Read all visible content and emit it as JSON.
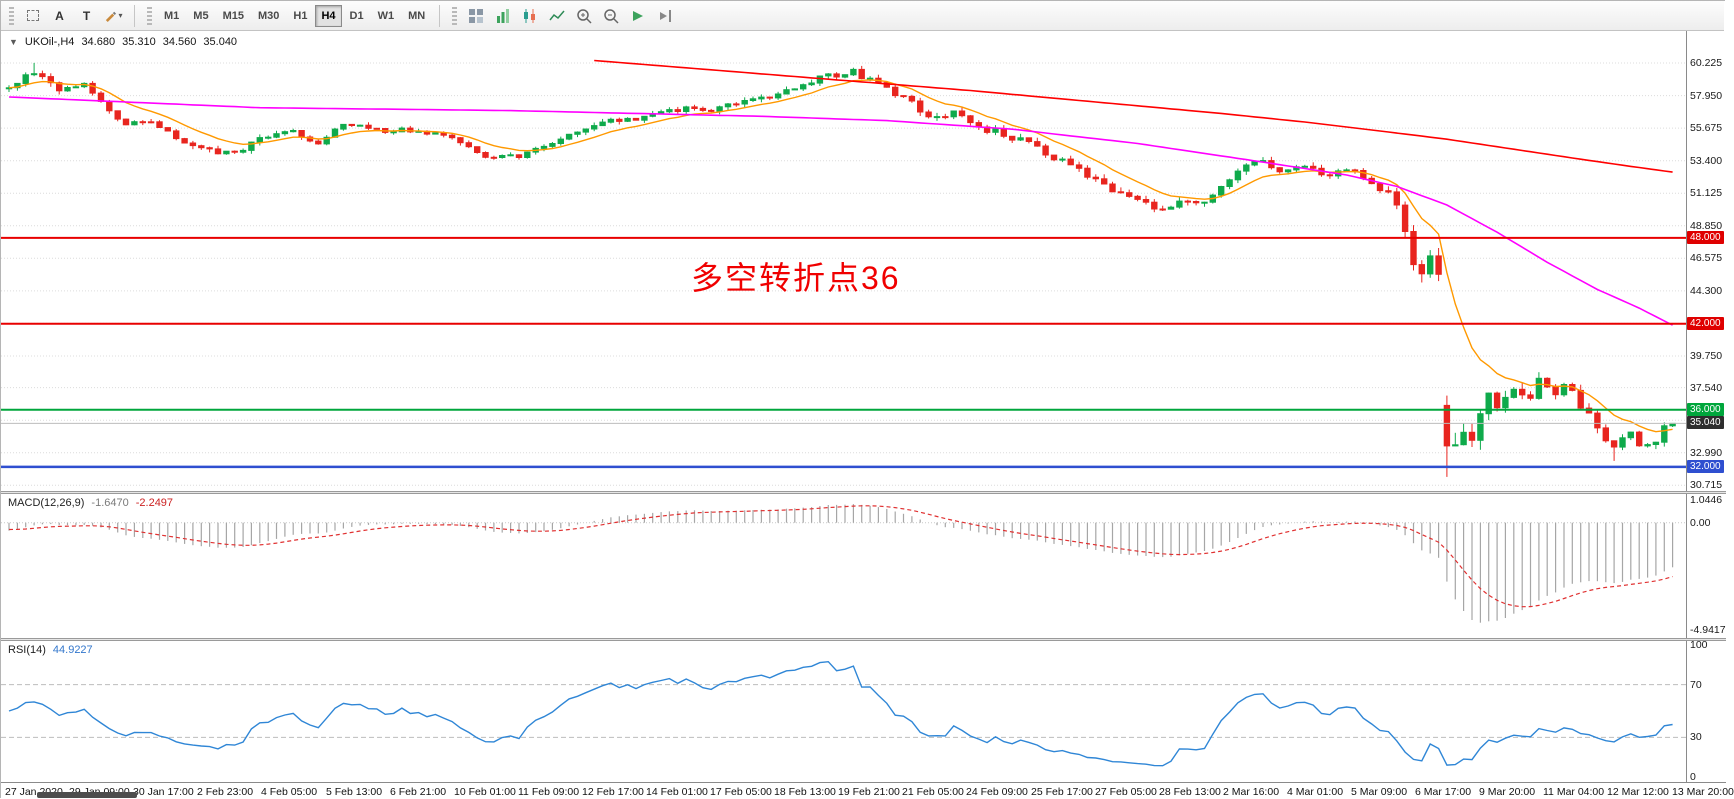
{
  "toolbar": {
    "left_tools": [
      {
        "name": "selection-tool-button",
        "kind": "dashedbox"
      },
      {
        "name": "text-tool-button",
        "kind": "glyph",
        "glyph": "A"
      },
      {
        "name": "label-tool-button",
        "kind": "glyph",
        "glyph": "T"
      },
      {
        "name": "draw-tools-menu-button",
        "kind": "pencil",
        "dropdown": "▾"
      }
    ],
    "timeframes": [
      {
        "label": "M1",
        "active": false
      },
      {
        "label": "M5",
        "active": false
      },
      {
        "label": "M15",
        "active": false
      },
      {
        "label": "M30",
        "active": false
      },
      {
        "label": "H1",
        "active": false
      },
      {
        "label": "H4",
        "active": true
      },
      {
        "label": "D1",
        "active": false
      },
      {
        "label": "W1",
        "active": false
      },
      {
        "label": "MN",
        "active": false
      }
    ],
    "right_icons": [
      {
        "name": "tile-windows-icon",
        "kind": "grid"
      },
      {
        "name": "new-chart-icon",
        "kind": "barchart"
      },
      {
        "name": "candlestick-view-icon",
        "kind": "candles"
      },
      {
        "name": "line-chart-view-icon",
        "kind": "linechart"
      },
      {
        "name": "zoom-in-icon",
        "kind": "zoomin"
      },
      {
        "name": "zoom-out-icon",
        "kind": "zoomout"
      },
      {
        "name": "auto-scroll-icon",
        "kind": "autoscroll"
      },
      {
        "name": "chart-shift-icon",
        "kind": "shift"
      }
    ]
  },
  "chart": {
    "title_symbol": "UKOil-,H4",
    "ohlc": {
      "open": "34.680",
      "high": "35.310",
      "low": "34.560",
      "close": "35.040"
    },
    "annotation": "多空转折点36",
    "price_axis": {
      "labels": [
        {
          "text": "60.225",
          "p": 60.225
        },
        {
          "text": "57.950",
          "p": 57.95
        },
        {
          "text": "55.675",
          "p": 55.675
        },
        {
          "text": "53.400",
          "p": 53.4
        },
        {
          "text": "51.125",
          "p": 51.125
        },
        {
          "text": "48.850",
          "p": 48.85
        },
        {
          "text": "46.575",
          "p": 46.575
        },
        {
          "text": "44.300",
          "p": 44.3
        },
        {
          "text": "39.750",
          "p": 39.75
        },
        {
          "text": "37.540",
          "p": 37.54
        },
        {
          "text": "32.990",
          "p": 32.99
        },
        {
          "text": "30.715",
          "p": 30.715
        }
      ],
      "grid_prices": [
        60.225,
        57.95,
        55.675,
        53.4,
        51.125,
        48.85,
        46.575,
        44.3,
        42.025,
        39.75,
        37.54,
        35.265,
        32.99,
        30.715
      ],
      "badges": [
        {
          "text": "48.000",
          "p": 48.0,
          "bg": "#df0000"
        },
        {
          "text": "42.000",
          "p": 42.0,
          "bg": "#df0000"
        },
        {
          "text": "36.000",
          "p": 36.0,
          "bg": "#00a63c"
        },
        {
          "text": "35.040",
          "p": 35.04,
          "bg": "#2e2e2e"
        },
        {
          "text": "32.000",
          "p": 32.0,
          "bg": "#2f4fd0"
        }
      ]
    },
    "hlines": [
      {
        "p": 48.0,
        "color": "#e80000",
        "w": 2
      },
      {
        "p": 42.0,
        "color": "#e80000",
        "w": 2
      },
      {
        "p": 36.0,
        "color": "#00a63c",
        "w": 2
      },
      {
        "p": 32.0,
        "color": "#2f4fd0",
        "w": 2.5
      },
      {
        "p": 35.04,
        "color": "#bdbdbd",
        "w": 1
      }
    ],
    "time_axis": [
      "27 Jan 2020",
      "29 Jan 09:00",
      "30 Jan 17:00",
      "2 Feb 23:00",
      "4 Feb 05:00",
      "5 Feb 13:00",
      "6 Feb 21:00",
      "10 Feb 01:00",
      "11 Feb 09:00",
      "12 Feb 17:00",
      "14 Feb 01:00",
      "17 Feb 05:00",
      "18 Feb 13:00",
      "19 Feb 21:00",
      "21 Feb 05:00",
      "24 Feb 09:00",
      "25 Feb 17:00",
      "27 Feb 05:00",
      "28 Feb 13:00",
      "2 Mar 16:00",
      "4 Mar 01:00",
      "5 Mar 09:00",
      "6 Mar 17:00",
      "9 Mar 20:00",
      "11 Mar 04:00",
      "12 Mar 12:00",
      "13 Mar 20:00"
    ]
  },
  "macd": {
    "label": "MACD(12,26,9)",
    "value": "-1.6470",
    "signal_value": "-2.2497",
    "axis": [
      {
        "text": "1.0446",
        "v": 1.0446
      },
      {
        "text": "0.00",
        "v": 0
      },
      {
        "text": "-4.9417",
        "v": -4.9417
      }
    ]
  },
  "rsi": {
    "label": "RSI(14)",
    "value": "44.9227",
    "axis": [
      {
        "text": "100",
        "v": 100
      },
      {
        "text": "70",
        "v": 70
      },
      {
        "text": "30",
        "v": 30
      },
      {
        "text": "0",
        "v": 0
      }
    ],
    "levels": [
      70,
      30
    ]
  },
  "colors": {
    "candle_up": "#0faa4b",
    "candle_down": "#e8251f",
    "ma_fast": "#ff9900",
    "ma_mid": "#ff00ff",
    "ma_slow": "#ff0000",
    "current_price": "#bdbdbd",
    "grid": "#dcdcdc",
    "macd_hist": "#a6a6a6",
    "macd_signal": "#e03131",
    "rsi_line": "#2f86d6",
    "annotation": "#f00000"
  },
  "chart_data": {
    "type": "candlestick",
    "symbol": "UKOil",
    "timeframe": "H4",
    "candles_count": 200,
    "seed": 12,
    "price_path": [
      [
        0,
        58.6
      ],
      [
        3,
        59.7
      ],
      [
        6,
        58.4
      ],
      [
        9,
        58.9
      ],
      [
        12,
        57.0
      ],
      [
        14,
        55.9
      ],
      [
        17,
        56.3
      ],
      [
        20,
        54.9
      ],
      [
        23,
        54.2
      ],
      [
        27,
        53.8
      ],
      [
        30,
        55.0
      ],
      [
        33,
        55.6
      ],
      [
        37,
        54.7
      ],
      [
        40,
        55.9
      ],
      [
        44,
        55.5
      ],
      [
        48,
        55.6
      ],
      [
        52,
        55.2
      ],
      [
        55,
        54.3
      ],
      [
        58,
        53.5
      ],
      [
        61,
        53.8
      ],
      [
        65,
        54.6
      ],
      [
        68,
        55.5
      ],
      [
        71,
        56.1
      ],
      [
        75,
        56.4
      ],
      [
        78,
        56.8
      ],
      [
        81,
        57.1
      ],
      [
        84,
        56.9
      ],
      [
        88,
        57.6
      ],
      [
        91,
        57.9
      ],
      [
        94,
        58.6
      ],
      [
        98,
        59.3
      ],
      [
        101,
        59.6
      ],
      [
        104,
        58.9
      ],
      [
        107,
        57.8
      ],
      [
        110,
        56.5
      ],
      [
        113,
        56.8
      ],
      [
        117,
        55.6
      ],
      [
        120,
        55.0
      ],
      [
        123,
        54.3
      ],
      [
        127,
        53.0
      ],
      [
        130,
        51.9
      ],
      [
        133,
        51.2
      ],
      [
        136,
        50.3
      ],
      [
        138,
        49.9
      ],
      [
        140,
        50.7
      ],
      [
        142,
        50.3
      ],
      [
        145,
        51.6
      ],
      [
        148,
        53.0
      ],
      [
        150,
        53.3
      ],
      [
        152,
        52.6
      ],
      [
        155,
        53.1
      ],
      [
        157,
        52.3
      ],
      [
        160,
        52.8
      ],
      [
        163,
        51.9
      ],
      [
        165,
        51.1
      ],
      [
        166,
        50.2
      ],
      [
        167,
        48.5
      ],
      [
        168,
        46.4
      ],
      [
        169,
        45.2
      ],
      [
        170,
        46.3
      ],
      [
        171,
        45.4
      ],
      [
        172,
        34.2
      ],
      [
        173,
        33.0
      ],
      [
        174,
        34.8
      ],
      [
        175,
        33.5
      ],
      [
        176,
        36.0
      ],
      [
        177,
        37.3
      ],
      [
        178,
        36.4
      ],
      [
        180,
        37.6
      ],
      [
        182,
        37.2
      ],
      [
        183,
        38.1
      ],
      [
        185,
        37.4
      ],
      [
        186,
        37.8
      ],
      [
        188,
        36.2
      ],
      [
        190,
        34.8
      ],
      [
        191,
        34.0
      ],
      [
        192,
        33.3
      ],
      [
        194,
        34.3
      ],
      [
        195,
        33.6
      ],
      [
        196,
        33.4
      ],
      [
        198,
        34.6
      ],
      [
        199,
        35.0
      ]
    ],
    "volatility_path": [
      [
        0,
        0.55
      ],
      [
        10,
        0.5
      ],
      [
        30,
        0.45
      ],
      [
        60,
        0.4
      ],
      [
        90,
        0.45
      ],
      [
        110,
        0.55
      ],
      [
        125,
        0.6
      ],
      [
        140,
        0.55
      ],
      [
        155,
        0.5
      ],
      [
        163,
        0.55
      ],
      [
        166,
        0.9
      ],
      [
        169,
        1.1
      ],
      [
        171,
        1.0
      ],
      [
        172,
        2.0
      ],
      [
        174,
        1.5
      ],
      [
        178,
        1.1
      ],
      [
        183,
        0.9
      ],
      [
        188,
        0.85
      ],
      [
        193,
        0.8
      ],
      [
        199,
        0.65
      ]
    ],
    "gaps": [
      {
        "i": 172,
        "open": 36.3
      }
    ],
    "spikes": [
      {
        "i": 3,
        "high": 60.23
      },
      {
        "i": 101,
        "high": 59.9
      },
      {
        "i": 172,
        "low": 31.3
      },
      {
        "i": 183,
        "high": 38.62
      },
      {
        "i": 192,
        "low": 32.42
      }
    ],
    "ma_orange_period": 10,
    "ma_magenta": [
      [
        0,
        57.85
      ],
      [
        30,
        57.1
      ],
      [
        60,
        56.9
      ],
      [
        90,
        56.5
      ],
      [
        105,
        56.2
      ],
      [
        120,
        55.6
      ],
      [
        135,
        54.6
      ],
      [
        150,
        53.3
      ],
      [
        160,
        52.4
      ],
      [
        166,
        51.6
      ],
      [
        172,
        50.3
      ],
      [
        178,
        48.4
      ],
      [
        184,
        46.3
      ],
      [
        190,
        44.4
      ],
      [
        195,
        43.1
      ],
      [
        199,
        41.9
      ]
    ],
    "ma_red": [
      [
        70,
        60.4
      ],
      [
        85,
        59.7
      ],
      [
        100,
        59.0
      ],
      [
        115,
        58.3
      ],
      [
        130,
        57.5
      ],
      [
        145,
        56.7
      ],
      [
        155,
        56.1
      ],
      [
        165,
        55.4
      ],
      [
        172,
        54.9
      ],
      [
        180,
        54.2
      ],
      [
        188,
        53.5
      ],
      [
        194,
        53.0
      ],
      [
        199,
        52.6
      ]
    ],
    "levels": {
      "resistance1": 48.0,
      "resistance2": 42.0,
      "support1": 36.0,
      "support2": 32.0,
      "current": 35.04
    }
  }
}
